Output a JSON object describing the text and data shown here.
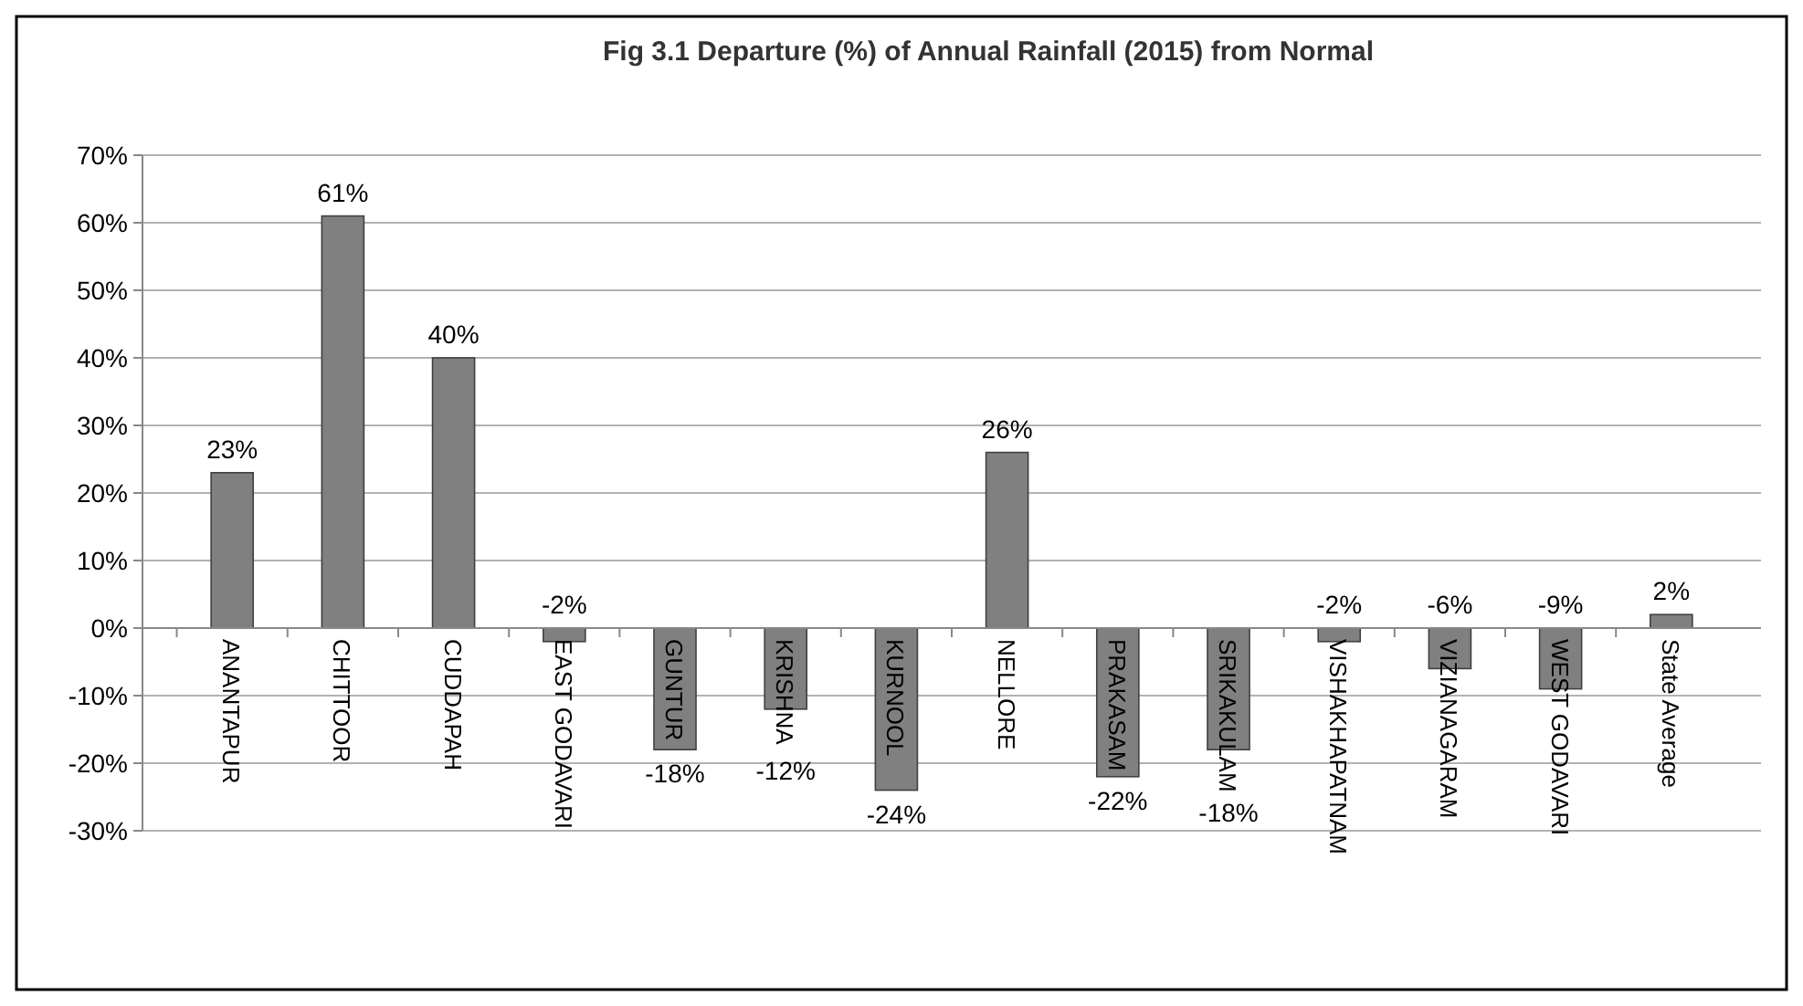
{
  "chart_data": {
    "type": "bar",
    "title": "Fig 3.1   Departure (%) of Annual Rainfall (2015) from Normal",
    "categories": [
      "ANANTAPUR",
      "CHITTOOR",
      "CUDDAPAH",
      "EAST GODAVARI",
      "GUNTUR",
      "KRISHNA",
      "KURNOOL",
      "NELLORE",
      "PRAKASAM",
      "SRIKAKULAM",
      "VISHAKHAPATNAM",
      "VIZIANAGARAM",
      "WEST GODAVARI",
      "State Average"
    ],
    "values": [
      23,
      61,
      40,
      -2,
      -18,
      -12,
      -24,
      26,
      -22,
      -18,
      -2,
      -6,
      -9,
      2
    ],
    "color": "#808080",
    "ylim": [
      -30,
      70
    ],
    "yticks": [
      {
        "value": -30,
        "label": "-30%"
      },
      {
        "value": -20,
        "label": "-20%"
      },
      {
        "value": -10,
        "label": "-10%"
      },
      {
        "value": 0,
        "label": "0%"
      },
      {
        "value": 10,
        "label": "10%"
      },
      {
        "value": 20,
        "label": "20%"
      },
      {
        "value": 30,
        "label": "30%"
      },
      {
        "value": 40,
        "label": "40%"
      },
      {
        "value": 50,
        "label": "50%"
      },
      {
        "value": 60,
        "label": "60%"
      },
      {
        "value": 70,
        "label": "70%"
      }
    ],
    "value_labels": [
      "23%",
      "61%",
      "40%",
      "-2%",
      "-18%",
      "-12%",
      "-24%",
      "26%",
      "-22%",
      "-18%",
      "-2%",
      "-6%",
      "-9%",
      "2%"
    ],
    "grid": true
  }
}
